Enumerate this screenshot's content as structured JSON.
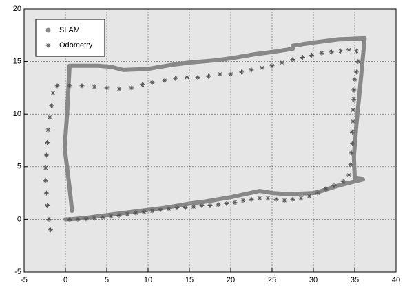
{
  "chart_data": {
    "type": "line",
    "xlim": [
      -5,
      40
    ],
    "ylim": [
      -5,
      20
    ],
    "xticks": [
      -5,
      0,
      5,
      10,
      15,
      20,
      25,
      30,
      35,
      40
    ],
    "yticks": [
      -5,
      0,
      5,
      10,
      15,
      20
    ],
    "grid": true,
    "legend": "upper left",
    "series": [
      {
        "name": "SLAM",
        "color": "#888888",
        "style": "line",
        "x": [
          0.8,
          0.5,
          -0.1,
          0.2,
          0.5,
          4,
          5.5,
          7,
          10,
          13,
          15,
          18,
          20,
          23,
          25,
          27.5,
          27.5,
          30,
          33,
          36.2,
          35.7,
          35.2,
          34.9,
          35.0,
          36,
          33,
          31,
          30,
          27,
          25,
          23.5,
          20,
          17,
          15,
          12,
          10,
          7,
          5,
          2,
          0.5,
          0
        ],
        "values": [
          0.8,
          3,
          6.8,
          10,
          14.6,
          14.6,
          14.5,
          14.2,
          14.3,
          14.7,
          14.9,
          15.1,
          15.3,
          15.7,
          15.9,
          16.2,
          16.5,
          16.8,
          17.1,
          17.2,
          13,
          9,
          6,
          3.9,
          3.8,
          3.2,
          2.7,
          2.5,
          2.4,
          2.5,
          2.7,
          2.1,
          1.7,
          1.5,
          1.1,
          0.9,
          0.6,
          0.4,
          0.1,
          0,
          0
        ]
      },
      {
        "name": "Odometry",
        "color": "#555555",
        "style": "marker",
        "x": [
          -1.8,
          -2,
          -2.2,
          -2.3,
          -2.4,
          -2.4,
          -2.3,
          -2.2,
          -2.1,
          -1.9,
          -1.7,
          -1.5,
          -1,
          0.5,
          2,
          3.5,
          5,
          6.5,
          8,
          9.3,
          10.5,
          12,
          13.3,
          14.7,
          16,
          17.3,
          18.7,
          20,
          21.3,
          22.5,
          23.8,
          25,
          26.2,
          27.5,
          28.7,
          29.8,
          31,
          32.2,
          33.3,
          34.3,
          35.2,
          35.4,
          35.2,
          35,
          34.9,
          34.9,
          34.8,
          34.8,
          34.7,
          34.7,
          34.6,
          34.5,
          34.3,
          33.6,
          32.5,
          31.5,
          30.5,
          29.5,
          28.5,
          27.5,
          26.5,
          25.5,
          24.5,
          23.5,
          22.5,
          21.5,
          20.5,
          19.5,
          18.5,
          17.5,
          16.5,
          15.5,
          14.5,
          13.5,
          12.5,
          11.5,
          10.5,
          9.5,
          8.5,
          7.5,
          6.5,
          5.5,
          4.5,
          3.5,
          2.5,
          1.5,
          0.5
        ],
        "values": [
          -1,
          0,
          1.3,
          2.5,
          3.7,
          4.9,
          6.1,
          7.3,
          8.5,
          9.7,
          10.8,
          12,
          12.7,
          12.7,
          12.7,
          12.6,
          12.5,
          12.4,
          12.5,
          12.8,
          13,
          13.2,
          13.4,
          13.5,
          13.5,
          13.6,
          13.8,
          13.8,
          14,
          14.2,
          14.4,
          14.6,
          14.9,
          15.2,
          15.4,
          15.6,
          15.8,
          15.9,
          16,
          16.1,
          16,
          15,
          14,
          13.3,
          12.3,
          11.4,
          10.4,
          9.3,
          8.3,
          7.2,
          6.3,
          5.2,
          4.2,
          3.6,
          3.2,
          2.9,
          2.5,
          2.2,
          2,
          1.9,
          1.8,
          1.9,
          2,
          2,
          1.9,
          1.8,
          1.6,
          1.5,
          1.4,
          1.3,
          1.3,
          1.2,
          1.1,
          1.1,
          1,
          0.9,
          0.8,
          0.7,
          0.6,
          0.5,
          0.4,
          0.3,
          0.2,
          0.1,
          0.05,
          0,
          0
        ]
      }
    ]
  }
}
